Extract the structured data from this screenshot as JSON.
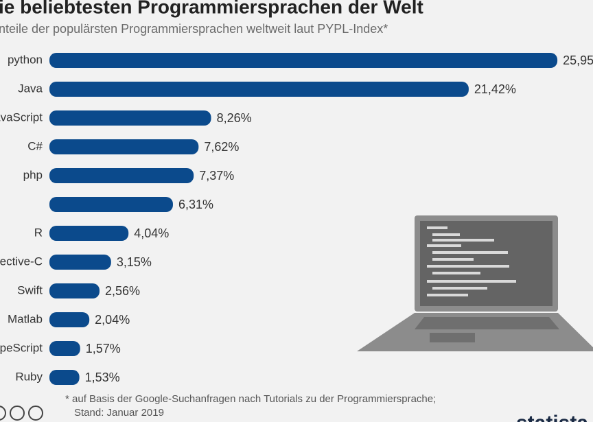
{
  "chart_data": {
    "type": "bar",
    "orientation": "horizontal",
    "title": "ie beliebtesten Programmiersprachen der Welt",
    "subtitle": "nteile der populärsten Programmiersprachen weltweit laut PYPL-Index*",
    "categories": [
      "python",
      "Java",
      "JavaScript",
      "C#",
      "php",
      null,
      "R",
      "jective-C",
      "Swift",
      "Matlab",
      "peScript",
      "Ruby"
    ],
    "values": [
      25.95,
      21.42,
      8.26,
      7.62,
      7.37,
      6.31,
      4.04,
      3.15,
      2.56,
      2.04,
      1.57,
      1.53
    ],
    "value_labels": [
      "25,95",
      "21,42%",
      "8,26%",
      "7,62%",
      "7,37%",
      "6,31%",
      "4,04%",
      "3,15%",
      "2,56%",
      "2,04%",
      "1,57%",
      "1,53%"
    ],
    "color": "#0b4a8c",
    "footnote": [
      "* auf Basis der Google-Suchanfragen nach Tutorials zu der Programmiersprache;",
      "Stand: Januar 2019"
    ],
    "source_logo": "statista"
  }
}
